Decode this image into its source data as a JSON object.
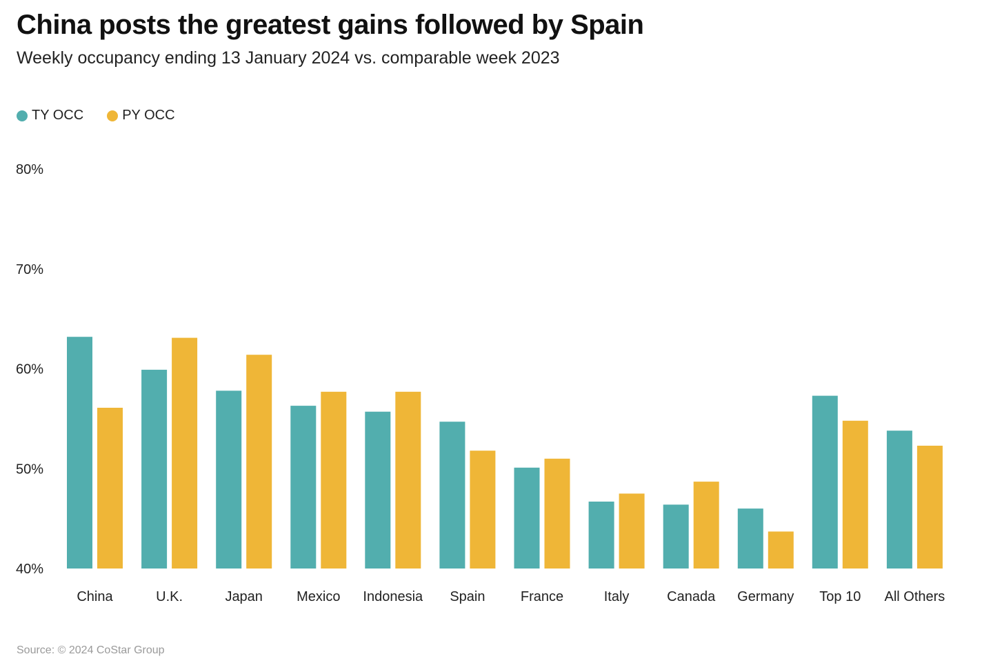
{
  "header": {
    "title": "China posts the greatest gains followed by Spain",
    "subtitle": "Weekly occupancy ending 13 January 2024 vs. comparable week 2023"
  },
  "legend": [
    {
      "label": "TY OCC",
      "color": "#52AEAE"
    },
    {
      "label": "PY OCC",
      "color": "#EFB637"
    }
  ],
  "footer": {
    "source": "Source: © 2024 CoStar Group"
  },
  "chart_data": {
    "type": "bar",
    "title": "China posts the greatest gains followed by Spain",
    "subtitle": "Weekly occupancy ending 13 January 2024 vs. comparable week 2023",
    "xlabel": "",
    "ylabel": "",
    "ylim": [
      40,
      80
    ],
    "yticks": [
      40,
      50,
      60,
      70,
      80
    ],
    "ytick_labels": [
      "40%",
      "50%",
      "60%",
      "70%",
      "80%"
    ],
    "grid": false,
    "legend_position": "top-left",
    "categories": [
      "China",
      "U.K.",
      "Japan",
      "Mexico",
      "Indonesia",
      "Spain",
      "France",
      "Italy",
      "Canada",
      "Germany",
      "Top 10",
      "All Others"
    ],
    "series": [
      {
        "name": "TY OCC",
        "color": "#52AEAE",
        "values": [
          63.2,
          59.9,
          57.8,
          56.3,
          55.7,
          54.7,
          50.1,
          46.7,
          46.4,
          46.0,
          57.3,
          53.8
        ]
      },
      {
        "name": "PY OCC",
        "color": "#EFB637",
        "values": [
          56.1,
          63.1,
          61.4,
          57.7,
          57.7,
          51.8,
          51.0,
          47.5,
          48.7,
          43.7,
          54.8,
          52.3
        ]
      }
    ]
  }
}
